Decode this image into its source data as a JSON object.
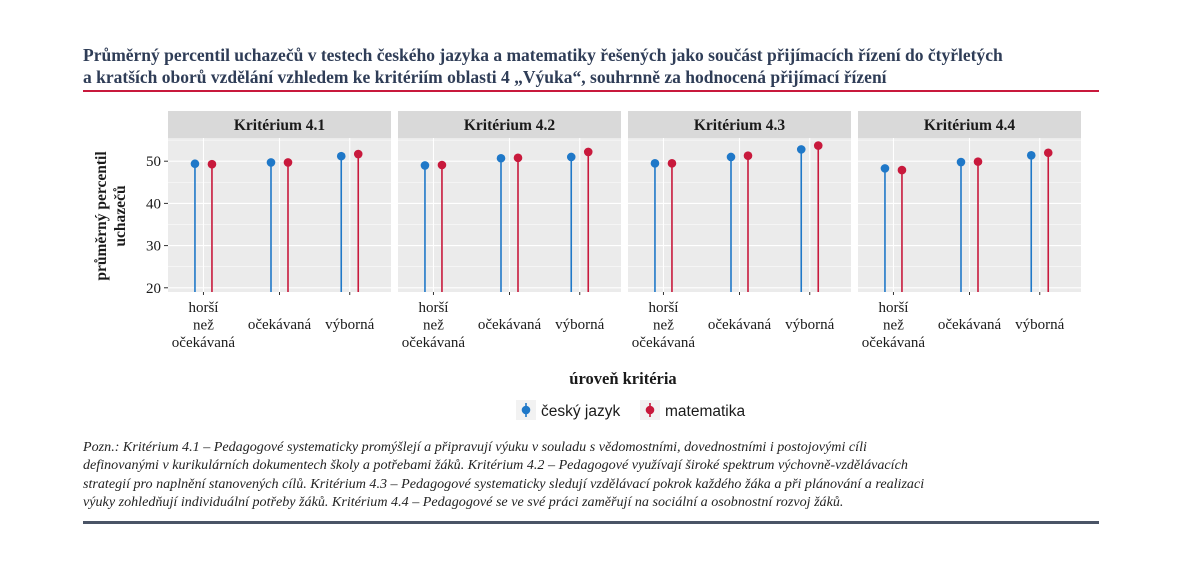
{
  "title_lines": [
    "Průměrný percentil uchazečů v testech českého jazyka a matematiky řešených jako součást přijímacích řízení do čtyřletých",
    "a kratších oborů vzdělání vzhledem ke kritériím oblasti 4 „Výuka“, souhrnně za hodnocená přijímací řízení"
  ],
  "note_lines": [
    "Pozn.: Kritérium 4.1 – Pedagogové systematicky promýšlejí a připravují výuku v souladu s vědomostními, dovednostními i postojovými cíli",
    "definovanými v kurikulárních dokumentech školy a potřebami žáků. Kritérium 4.2 – Pedagogové využívají široké spektrum výchovně-vzdělávacích",
    "strategií pro naplnění stanovených cílů. Kritérium 4.3 – Pedagogové systematicky sledují vzdělávací pokrok každého žáka a při plánování a realizaci",
    "výuky zohledňují individuální potřeby žáků. Kritérium 4.4 – Pedagogové se ve své práci zaměřují na sociální a osobnostní rozvoj žáků."
  ],
  "colors": {
    "cesky_jazyk": "#1f78c8",
    "matematika": "#c8193c",
    "panel_bg": "#ebebeb",
    "strip_bg": "#d9d9d9",
    "grid": "#ffffff"
  },
  "chart_data": {
    "type": "lollipop",
    "xlabel": "úroveň kritéria",
    "ylabel_lines": [
      "průměrný percentil",
      "uchazečů"
    ],
    "ylim": [
      19,
      55.5
    ],
    "yticks": [
      20,
      30,
      40,
      50
    ],
    "categories": [
      {
        "lines": [
          "horší",
          "než",
          "očekávaná"
        ]
      },
      {
        "lines": [
          "očekávaná"
        ]
      },
      {
        "lines": [
          "výborná"
        ]
      }
    ],
    "legend": {
      "position": "bottom",
      "entries": [
        "český jazyk",
        "matematika"
      ]
    },
    "panels": [
      {
        "title": "Kritérium 4.1",
        "series": [
          {
            "name": "český jazyk",
            "values": [
              49.4,
              49.7,
              51.2
            ]
          },
          {
            "name": "matematika",
            "values": [
              49.3,
              49.7,
              51.7
            ]
          }
        ]
      },
      {
        "title": "Kritérium 4.2",
        "series": [
          {
            "name": "český jazyk",
            "values": [
              49.0,
              50.7,
              51.0
            ]
          },
          {
            "name": "matematika",
            "values": [
              49.1,
              50.8,
              52.2
            ]
          }
        ]
      },
      {
        "title": "Kritérium 4.3",
        "series": [
          {
            "name": "český jazyk",
            "values": [
              49.5,
              51.0,
              52.8
            ]
          },
          {
            "name": "matematika",
            "values": [
              49.5,
              51.3,
              53.7
            ]
          }
        ]
      },
      {
        "title": "Kritérium 4.4",
        "series": [
          {
            "name": "český jazyk",
            "values": [
              48.3,
              49.8,
              51.4
            ]
          },
          {
            "name": "matematika",
            "values": [
              47.9,
              49.9,
              52.0
            ]
          }
        ]
      }
    ]
  }
}
